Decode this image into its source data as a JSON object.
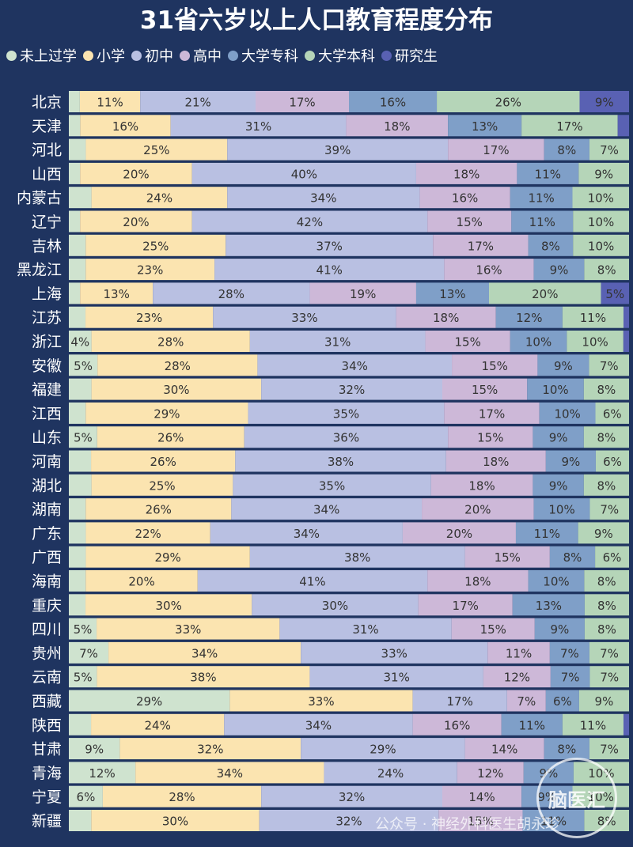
{
  "chart_data": {
    "type": "bar",
    "orientation": "horizontal-stacked",
    "title": "31省六岁以上人口教育程度分布",
    "unit": "%",
    "legend_position": "top",
    "categories": [
      "北京",
      "天津",
      "河北",
      "山西",
      "内蒙古",
      "辽宁",
      "吉林",
      "黑龙江",
      "上海",
      "江苏",
      "浙江",
      "安徽",
      "福建",
      "江西",
      "山东",
      "河南",
      "湖北",
      "湖南",
      "广东",
      "广西",
      "海南",
      "重庆",
      "四川",
      "贵州",
      "云南",
      "西藏",
      "陕西",
      "甘肃",
      "青海",
      "宁夏",
      "新疆"
    ],
    "series": [
      {
        "name": "未上过学",
        "color": "#cfe3cf",
        "values": [
          2,
          2,
          3,
          2,
          4,
          2,
          3,
          3,
          2,
          3,
          4,
          5,
          4,
          3,
          5,
          4,
          4,
          3,
          3,
          3,
          3,
          3,
          5,
          7,
          5,
          29,
          4,
          9,
          12,
          6,
          4
        ],
        "labels": [
          "",
          "",
          "",
          "",
          "",
          "",
          "",
          "",
          "",
          "",
          "4%",
          "5%",
          "",
          "",
          "5%",
          "",
          "",
          "",
          "",
          "",
          "",
          "",
          "5%",
          "7%",
          "5%",
          "29%",
          "",
          "9%",
          "12%",
          "6%",
          ""
        ]
      },
      {
        "name": "小学",
        "color": "#fbe4b0",
        "values": [
          11,
          16,
          25,
          20,
          24,
          20,
          25,
          23,
          13,
          23,
          28,
          28,
          30,
          29,
          26,
          26,
          25,
          26,
          22,
          29,
          20,
          30,
          33,
          34,
          38,
          33,
          24,
          32,
          34,
          28,
          30
        ],
        "labels": [
          "11%",
          "16%",
          "25%",
          "20%",
          "24%",
          "20%",
          "25%",
          "23%",
          "13%",
          "23%",
          "28%",
          "28%",
          "30%",
          "29%",
          "26%",
          "26%",
          "25%",
          "26%",
          "22%",
          "29%",
          "20%",
          "30%",
          "33%",
          "34%",
          "38%",
          "33%",
          "24%",
          "32%",
          "34%",
          "28%",
          "30%"
        ]
      },
      {
        "name": "初中",
        "color": "#b9c0e2",
        "values": [
          21,
          31,
          39,
          40,
          34,
          42,
          37,
          41,
          28,
          33,
          31,
          34,
          32,
          35,
          36,
          38,
          35,
          34,
          34,
          38,
          41,
          30,
          31,
          33,
          31,
          17,
          34,
          29,
          24,
          32,
          32
        ],
        "labels": [
          "21%",
          "31%",
          "39%",
          "40%",
          "34%",
          "42%",
          "37%",
          "41%",
          "28%",
          "33%",
          "31%",
          "34%",
          "32%",
          "35%",
          "36%",
          "38%",
          "35%",
          "34%",
          "34%",
          "38%",
          "41%",
          "30%",
          "31%",
          "33%",
          "31%",
          "17%",
          "34%",
          "29%",
          "24%",
          "32%",
          "32%"
        ]
      },
      {
        "name": "高中",
        "color": "#cdb8d8",
        "values": [
          17,
          18,
          17,
          18,
          16,
          15,
          17,
          16,
          19,
          18,
          15,
          15,
          15,
          17,
          15,
          18,
          18,
          20,
          20,
          15,
          18,
          17,
          15,
          11,
          12,
          7,
          16,
          14,
          12,
          14,
          15
        ],
        "labels": [
          "17%",
          "18%",
          "17%",
          "18%",
          "16%",
          "15%",
          "17%",
          "16%",
          "19%",
          "18%",
          "15%",
          "15%",
          "15%",
          "17%",
          "15%",
          "18%",
          "18%",
          "20%",
          "20%",
          "15%",
          "18%",
          "17%",
          "15%",
          "11%",
          "12%",
          "7%",
          "16%",
          "14%",
          "12%",
          "14%",
          "15%"
        ]
      },
      {
        "name": "大学专科",
        "color": "#7f9fc8",
        "values": [
          16,
          13,
          8,
          11,
          11,
          11,
          8,
          9,
          13,
          12,
          10,
          9,
          10,
          10,
          9,
          9,
          9,
          10,
          11,
          8,
          10,
          13,
          9,
          7,
          7,
          6,
          11,
          8,
          9,
          9,
          11
        ],
        "labels": [
          "16%",
          "13%",
          "8%",
          "11%",
          "11%",
          "11%",
          "8%",
          "9%",
          "13%",
          "12%",
          "10%",
          "9%",
          "10%",
          "10%",
          "9%",
          "9%",
          "9%",
          "10%",
          "11%",
          "8%",
          "10%",
          "13%",
          "9%",
          "7%",
          "7%",
          "6%",
          "11%",
          "8%",
          "9%",
          "9%",
          "11%"
        ]
      },
      {
        "name": "大学本科",
        "color": "#b5d5b8",
        "values": [
          26,
          17,
          7,
          9,
          10,
          10,
          10,
          8,
          20,
          11,
          10,
          7,
          8,
          6,
          8,
          6,
          8,
          7,
          9,
          6,
          8,
          8,
          8,
          7,
          7,
          9,
          11,
          7,
          10,
          10,
          8
        ],
        "labels": [
          "26%",
          "17%",
          "7%",
          "9%",
          "10%",
          "10%",
          "10%",
          "8%",
          "20%",
          "11%",
          "10%",
          "7%",
          "8%",
          "6%",
          "8%",
          "6%",
          "8%",
          "7%",
          "9%",
          "6%",
          "8%",
          "8%",
          "8%",
          "7%",
          "7%",
          "9%",
          "11%",
          "7%",
          "10%",
          "10%",
          "8%"
        ]
      },
      {
        "name": "研究生",
        "color": "#5961b3",
        "values": [
          9,
          2,
          0,
          0,
          0,
          0,
          0,
          0,
          5,
          1,
          1,
          0,
          0,
          0,
          0,
          0,
          0,
          0,
          0,
          0,
          0,
          0,
          0,
          0,
          0,
          0,
          1,
          0,
          0,
          0,
          0
        ],
        "labels": [
          "9%",
          "",
          "",
          "",
          "",
          "",
          "",
          "",
          "5%",
          "",
          "",
          "",
          "",
          "",
          "",
          "",
          "",
          "",
          "",
          "",
          "",
          "",
          "",
          "",
          "",
          "",
          "",
          "",
          "",
          "",
          ""
        ]
      }
    ]
  },
  "watermark": {
    "text": "公众号 · 神经外科医生胡永珍",
    "logo_text": "脑医汇"
  }
}
